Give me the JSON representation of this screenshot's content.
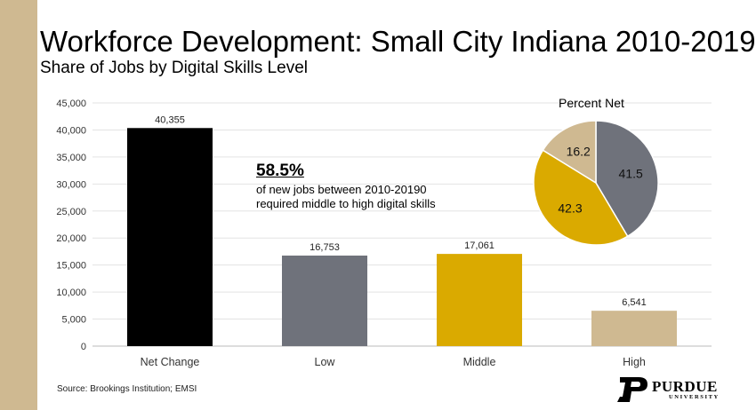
{
  "title": "Workforce Development: Small City Indiana 2010-2019",
  "subtitle": "Share of Jobs by Digital Skills Level",
  "source": "Source: Brookings Institution; EMSI",
  "logo": {
    "name": "PURDUE",
    "sub": "UNIVERSITY"
  },
  "callout": {
    "value": "58.5%",
    "text": "of new jobs between 2010-20190 required middle to high digital skills"
  },
  "colors": {
    "strip": "#cfb991",
    "net_change": "#000000",
    "low": "#6f727b",
    "middle": "#daaa00",
    "high": "#cfb991"
  },
  "chart_data": [
    {
      "type": "bar",
      "categories": [
        "Net Change",
        "Low",
        "Middle",
        "High"
      ],
      "values": [
        40355,
        16753,
        17061,
        6541
      ],
      "data_labels": [
        "40,355",
        "16,753",
        "17,061",
        "6,541"
      ],
      "ylim": [
        0,
        45000
      ],
      "yticks": [
        0,
        5000,
        10000,
        15000,
        20000,
        25000,
        30000,
        35000,
        40000,
        45000
      ],
      "ytick_labels": [
        "0",
        "5,000",
        "10,000",
        "15,000",
        "20,000",
        "25,000",
        "30,000",
        "35,000",
        "40,000",
        "45,000"
      ],
      "grid": true
    },
    {
      "type": "pie",
      "title": "Percent Net",
      "slices": [
        {
          "category": "Low",
          "value": 41.5,
          "label": "41.5"
        },
        {
          "category": "Middle",
          "value": 42.3,
          "label": "42.3"
        },
        {
          "category": "High",
          "value": 16.2,
          "label": "16.2"
        }
      ]
    }
  ]
}
